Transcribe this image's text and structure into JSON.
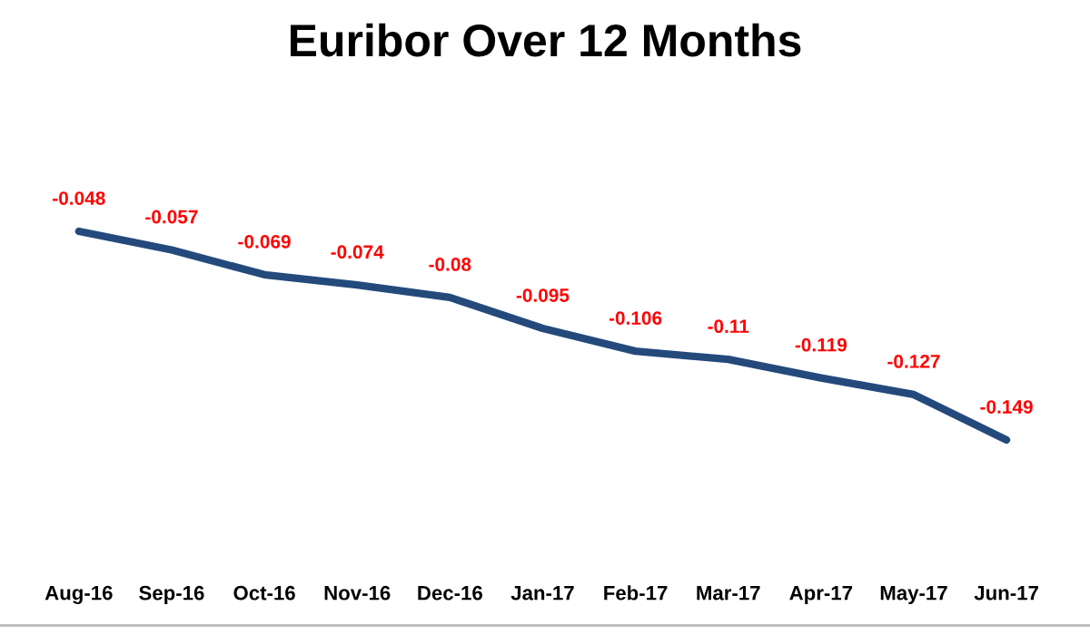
{
  "chart_data": {
    "type": "line",
    "title": "Euribor Over 12 Months",
    "categories": [
      "Aug-16",
      "Sep-16",
      "Oct-16",
      "Nov-16",
      "Dec-16",
      "Jan-17",
      "Feb-17",
      "Mar-17",
      "Apr-17",
      "May-17",
      "Jun-17"
    ],
    "series": [
      {
        "color": "#244a7c",
        "values": [
          -0.048,
          -0.057,
          -0.069,
          -0.074,
          -0.08,
          -0.095,
          -0.106,
          -0.11,
          -0.119,
          -0.127,
          -0.149
        ]
      }
    ],
    "data_labels": true,
    "grid": false,
    "legend": false,
    "marker": "none",
    "line_style": "solid"
  }
}
